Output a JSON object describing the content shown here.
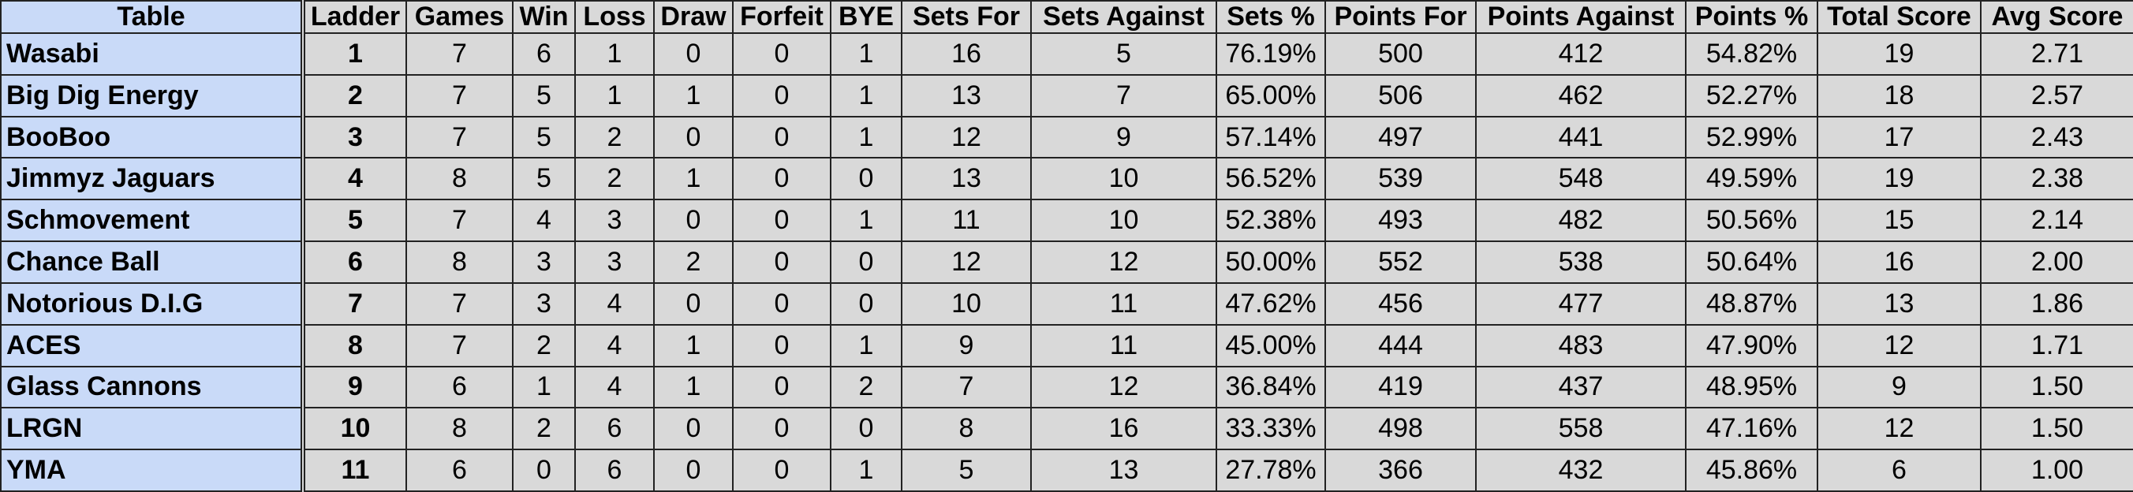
{
  "table": {
    "header": [
      "Table",
      "Ladder",
      "Games",
      "Win",
      "Loss",
      "Draw",
      "Forfeit",
      "BYE",
      "Sets For",
      "Sets Against",
      "Sets %",
      "Points For",
      "Points Against",
      "Points %",
      "Total Score",
      "Avg Score"
    ],
    "rows": [
      [
        "Wasabi",
        "1",
        "7",
        "6",
        "1",
        "0",
        "0",
        "1",
        "16",
        "5",
        "76.19%",
        "500",
        "412",
        "54.82%",
        "19",
        "2.71"
      ],
      [
        "Big Dig Energy",
        "2",
        "7",
        "5",
        "1",
        "1",
        "0",
        "1",
        "13",
        "7",
        "65.00%",
        "506",
        "462",
        "52.27%",
        "18",
        "2.57"
      ],
      [
        "BooBoo",
        "3",
        "7",
        "5",
        "2",
        "0",
        "0",
        "1",
        "12",
        "9",
        "57.14%",
        "497",
        "441",
        "52.99%",
        "17",
        "2.43"
      ],
      [
        "Jimmyz Jaguars",
        "4",
        "8",
        "5",
        "2",
        "1",
        "0",
        "0",
        "13",
        "10",
        "56.52%",
        "539",
        "548",
        "49.59%",
        "19",
        "2.38"
      ],
      [
        "Schmovement",
        "5",
        "7",
        "4",
        "3",
        "0",
        "0",
        "1",
        "11",
        "10",
        "52.38%",
        "493",
        "482",
        "50.56%",
        "15",
        "2.14"
      ],
      [
        "Chance Ball",
        "6",
        "8",
        "3",
        "3",
        "2",
        "0",
        "0",
        "12",
        "12",
        "50.00%",
        "552",
        "538",
        "50.64%",
        "16",
        "2.00"
      ],
      [
        "Notorious D.I.G",
        "7",
        "7",
        "3",
        "4",
        "0",
        "0",
        "0",
        "10",
        "11",
        "47.62%",
        "456",
        "477",
        "48.87%",
        "13",
        "1.86"
      ],
      [
        "ACES",
        "8",
        "7",
        "2",
        "4",
        "1",
        "0",
        "1",
        "9",
        "11",
        "45.00%",
        "444",
        "483",
        "47.90%",
        "12",
        "1.71"
      ],
      [
        "Glass Cannons",
        "9",
        "6",
        "1",
        "4",
        "1",
        "0",
        "2",
        "7",
        "12",
        "36.84%",
        "419",
        "437",
        "48.95%",
        "9",
        "1.50"
      ],
      [
        "LRGN",
        "10",
        "8",
        "2",
        "6",
        "0",
        "0",
        "0",
        "8",
        "16",
        "33.33%",
        "498",
        "558",
        "47.16%",
        "12",
        "1.50"
      ],
      [
        "YMA",
        "11",
        "6",
        "0",
        "6",
        "0",
        "0",
        "1",
        "5",
        "13",
        "27.78%",
        "366",
        "432",
        "45.86%",
        "6",
        "1.00"
      ]
    ]
  }
}
